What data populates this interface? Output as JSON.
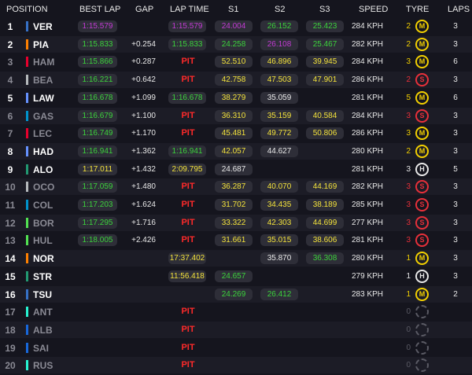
{
  "headers": {
    "position": "POSITION",
    "best_lap": "BEST LAP",
    "gap": "GAP",
    "lap_time": "LAP TIME",
    "s1": "S1",
    "s2": "S2",
    "s3": "S3",
    "speed": "SPEED",
    "tyre": "TYRE",
    "laps": "LAPS"
  },
  "team_colors": {
    "redbull": "#3671c6",
    "mclaren": "#ff8000",
    "haas": "#b6babd",
    "williams": "#1868db",
    "alpine": "#0093cc",
    "ferrari": "#e8002d",
    "aston": "#229971",
    "sauber": "#52e252",
    "racingbulls": "#6692ff",
    "mercedes": "#27f4d2"
  },
  "rows": [
    {
      "pos": "1",
      "code": "VER",
      "team": "redbull",
      "best": "1:15.579",
      "best_color": "purple",
      "gap": "",
      "lap_time": "1:15.579",
      "lt_color": "purple",
      "pit": "",
      "s1": "24.004",
      "s1c": "purple",
      "s2": "26.152",
      "s2c": "green",
      "s3": "25.423",
      "s3c": "green",
      "speed": "284 KPH",
      "tyre_laps": "2",
      "tyre": "M",
      "laps": "3",
      "dim": false
    },
    {
      "pos": "2",
      "code": "PIA",
      "team": "mclaren",
      "best": "1:15.833",
      "best_color": "green",
      "gap": "+0.254",
      "lap_time": "1:15.833",
      "lt_color": "green",
      "pit": "",
      "s1": "24.258",
      "s1c": "green",
      "s2": "26.108",
      "s2c": "purple",
      "s3": "25.467",
      "s3c": "green",
      "speed": "282 KPH",
      "tyre_laps": "2",
      "tyre": "M",
      "laps": "3",
      "dim": false
    },
    {
      "pos": "3",
      "code": "HAM",
      "team": "ferrari",
      "best": "1:15.866",
      "best_color": "green",
      "gap": "+0.287",
      "lap_time": "",
      "lt_color": "",
      "pit": "PIT",
      "s1": "52.510",
      "s1c": "yellow",
      "s2": "46.896",
      "s2c": "yellow",
      "s3": "39.945",
      "s3c": "yellow",
      "speed": "284 KPH",
      "tyre_laps": "3",
      "tyre": "M",
      "laps": "6",
      "dim": true
    },
    {
      "pos": "4",
      "code": "BEA",
      "team": "haas",
      "best": "1:16.221",
      "best_color": "green",
      "gap": "+0.642",
      "lap_time": "",
      "lt_color": "",
      "pit": "PIT",
      "s1": "42.758",
      "s1c": "yellow",
      "s2": "47.503",
      "s2c": "yellow",
      "s3": "47.901",
      "s3c": "yellow",
      "speed": "286 KPH",
      "tyre_laps": "2",
      "tyre": "S",
      "laps": "3",
      "dim": true
    },
    {
      "pos": "5",
      "code": "LAW",
      "team": "racingbulls",
      "best": "1:16.678",
      "best_color": "green",
      "gap": "+1.099",
      "lap_time": "1:16.678",
      "lt_color": "green",
      "pit": "",
      "s1": "38.279",
      "s1c": "yellow",
      "s2": "35.059",
      "s2c": "white",
      "s3": "",
      "s3c": "",
      "speed": "281 KPH",
      "tyre_laps": "5",
      "tyre": "M",
      "laps": "6",
      "dim": false
    },
    {
      "pos": "6",
      "code": "GAS",
      "team": "alpine",
      "best": "1:16.679",
      "best_color": "green",
      "gap": "+1.100",
      "lap_time": "",
      "lt_color": "",
      "pit": "PIT",
      "s1": "36.310",
      "s1c": "yellow",
      "s2": "35.159",
      "s2c": "yellow",
      "s3": "40.584",
      "s3c": "yellow",
      "speed": "284 KPH",
      "tyre_laps": "3",
      "tyre": "S",
      "laps": "3",
      "dim": true
    },
    {
      "pos": "7",
      "code": "LEC",
      "team": "ferrari",
      "best": "1:16.749",
      "best_color": "green",
      "gap": "+1.170",
      "lap_time": "",
      "lt_color": "",
      "pit": "PIT",
      "s1": "45.481",
      "s1c": "yellow",
      "s2": "49.772",
      "s2c": "yellow",
      "s3": "50.806",
      "s3c": "yellow",
      "speed": "286 KPH",
      "tyre_laps": "3",
      "tyre": "M",
      "laps": "3",
      "dim": true
    },
    {
      "pos": "8",
      "code": "HAD",
      "team": "racingbulls",
      "best": "1:16.941",
      "best_color": "green",
      "gap": "+1.362",
      "lap_time": "1:16.941",
      "lt_color": "green",
      "pit": "",
      "s1": "42.057",
      "s1c": "yellow",
      "s2": "44.627",
      "s2c": "white",
      "s3": "",
      "s3c": "",
      "speed": "280 KPH",
      "tyre_laps": "2",
      "tyre": "M",
      "laps": "3",
      "dim": false
    },
    {
      "pos": "9",
      "code": "ALO",
      "team": "aston",
      "best": "1:17.011",
      "best_color": "yellow",
      "gap": "+1.432",
      "lap_time": "2:09.795",
      "lt_color": "yellow",
      "pit": "",
      "s1": "24.687",
      "s1c": "white",
      "s2": "",
      "s2c": "",
      "s3": "",
      "s3c": "",
      "speed": "281 KPH",
      "tyre_laps": "3",
      "tyre": "H",
      "laps": "5",
      "dim": false
    },
    {
      "pos": "10",
      "code": "OCO",
      "team": "haas",
      "best": "1:17.059",
      "best_color": "green",
      "gap": "+1.480",
      "lap_time": "",
      "lt_color": "",
      "pit": "PIT",
      "s1": "36.287",
      "s1c": "yellow",
      "s2": "40.070",
      "s2c": "yellow",
      "s3": "44.169",
      "s3c": "yellow",
      "speed": "282 KPH",
      "tyre_laps": "3",
      "tyre": "S",
      "laps": "3",
      "dim": true
    },
    {
      "pos": "11",
      "code": "COL",
      "team": "alpine",
      "best": "1:17.203",
      "best_color": "green",
      "gap": "+1.624",
      "lap_time": "",
      "lt_color": "",
      "pit": "PIT",
      "s1": "31.702",
      "s1c": "yellow",
      "s2": "34.435",
      "s2c": "yellow",
      "s3": "38.189",
      "s3c": "yellow",
      "speed": "285 KPH",
      "tyre_laps": "3",
      "tyre": "S",
      "laps": "3",
      "dim": true
    },
    {
      "pos": "12",
      "code": "BOR",
      "team": "sauber",
      "best": "1:17.295",
      "best_color": "green",
      "gap": "+1.716",
      "lap_time": "",
      "lt_color": "",
      "pit": "PIT",
      "s1": "33.322",
      "s1c": "yellow",
      "s2": "42.303",
      "s2c": "yellow",
      "s3": "44.699",
      "s3c": "yellow",
      "speed": "277 KPH",
      "tyre_laps": "3",
      "tyre": "S",
      "laps": "3",
      "dim": true
    },
    {
      "pos": "13",
      "code": "HUL",
      "team": "sauber",
      "best": "1:18.005",
      "best_color": "green",
      "gap": "+2.426",
      "lap_time": "",
      "lt_color": "",
      "pit": "PIT",
      "s1": "31.661",
      "s1c": "yellow",
      "s2": "35.015",
      "s2c": "yellow",
      "s3": "38.606",
      "s3c": "yellow",
      "speed": "281 KPH",
      "tyre_laps": "3",
      "tyre": "S",
      "laps": "3",
      "dim": true
    },
    {
      "pos": "14",
      "code": "NOR",
      "team": "mclaren",
      "best": "",
      "best_color": "",
      "gap": "",
      "lap_time": "17:37.402",
      "lt_color": "yellow",
      "pit": "",
      "s1": "",
      "s1c": "",
      "s2": "35.870",
      "s2c": "white",
      "s3": "36.308",
      "s3c": "green",
      "speed": "280 KPH",
      "tyre_laps": "1",
      "tyre": "M",
      "laps": "3",
      "dim": false
    },
    {
      "pos": "15",
      "code": "STR",
      "team": "aston",
      "best": "",
      "best_color": "",
      "gap": "",
      "lap_time": "11:56.418",
      "lt_color": "yellow",
      "pit": "",
      "s1": "24.657",
      "s1c": "green",
      "s2": "",
      "s2c": "",
      "s3": "",
      "s3c": "",
      "speed": "279 KPH",
      "tyre_laps": "1",
      "tyre": "H",
      "laps": "3",
      "dim": false
    },
    {
      "pos": "16",
      "code": "TSU",
      "team": "redbull",
      "best": "",
      "best_color": "",
      "gap": "",
      "lap_time": "",
      "lt_color": "",
      "pit": "",
      "s1": "24.269",
      "s1c": "green",
      "s2": "26.412",
      "s2c": "green",
      "s3": "",
      "s3c": "",
      "speed": "283 KPH",
      "tyre_laps": "1",
      "tyre": "M",
      "laps": "2",
      "dim": false
    },
    {
      "pos": "17",
      "code": "ANT",
      "team": "mercedes",
      "best": "",
      "best_color": "",
      "gap": "",
      "lap_time": "",
      "lt_color": "",
      "pit": "PIT",
      "s1": "",
      "s1c": "",
      "s2": "",
      "s2c": "",
      "s3": "",
      "s3c": "",
      "speed": "",
      "tyre_laps": "0",
      "tyre": "",
      "laps": "",
      "dim": true
    },
    {
      "pos": "18",
      "code": "ALB",
      "team": "williams",
      "best": "",
      "best_color": "",
      "gap": "",
      "lap_time": "",
      "lt_color": "",
      "pit": "PIT",
      "s1": "",
      "s1c": "",
      "s2": "",
      "s2c": "",
      "s3": "",
      "s3c": "",
      "speed": "",
      "tyre_laps": "0",
      "tyre": "",
      "laps": "",
      "dim": true
    },
    {
      "pos": "19",
      "code": "SAI",
      "team": "williams",
      "best": "",
      "best_color": "",
      "gap": "",
      "lap_time": "",
      "lt_color": "",
      "pit": "PIT",
      "s1": "",
      "s1c": "",
      "s2": "",
      "s2c": "",
      "s3": "",
      "s3c": "",
      "speed": "",
      "tyre_laps": "0",
      "tyre": "",
      "laps": "",
      "dim": true
    },
    {
      "pos": "20",
      "code": "RUS",
      "team": "mercedes",
      "best": "",
      "best_color": "",
      "gap": "",
      "lap_time": "",
      "lt_color": "",
      "pit": "PIT",
      "s1": "",
      "s1c": "",
      "s2": "",
      "s2c": "",
      "s3": "",
      "s3c": "",
      "speed": "",
      "tyre_laps": "0",
      "tyre": "",
      "laps": "",
      "dim": true
    }
  ]
}
